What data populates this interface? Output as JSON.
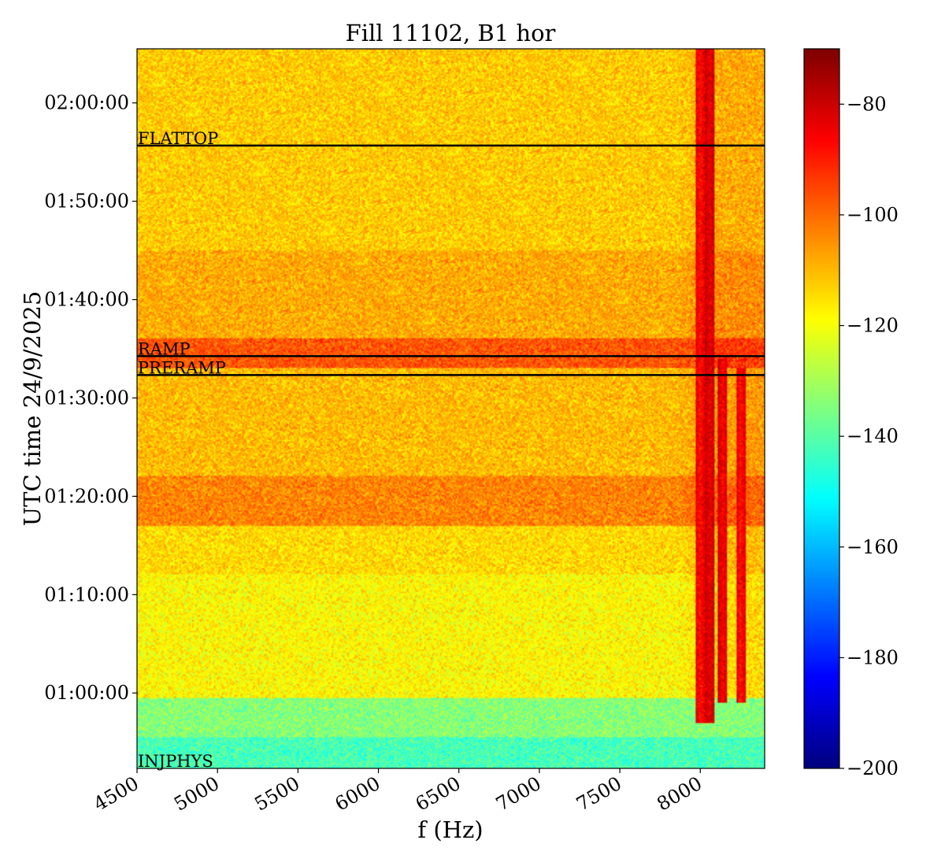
{
  "chart_data": {
    "type": "heatmap",
    "title": "Fill 11102, B1 hor",
    "xlabel": "f (Hz)",
    "ylabel": "UTC time 24/9/2025",
    "xlim": [
      4500,
      8400
    ],
    "ylim": [
      "00:52:20",
      "02:05:30"
    ],
    "x_ticks": [
      4500,
      5000,
      5500,
      6000,
      6500,
      7000,
      7500,
      8000
    ],
    "y_ticks": [
      "01:00:00",
      "01:10:00",
      "01:20:00",
      "01:30:00",
      "01:40:00",
      "01:50:00",
      "02:00:00"
    ],
    "colorscale": "jet",
    "colorbar": {
      "range": [
        -200,
        -70
      ],
      "ticks": [
        -80,
        -100,
        -120,
        -140,
        -160,
        -180,
        -200
      ],
      "tick_labels": [
        "−80",
        "−100",
        "−120",
        "−140",
        "−160",
        "−180",
        "−200"
      ]
    },
    "events": [
      {
        "label": "FLATTOP",
        "time": "01:55:40"
      },
      {
        "label": "RAMP",
        "time": "01:34:15"
      },
      {
        "label": "PRERAMP",
        "time": "01:32:20"
      },
      {
        "label": "INJPHYS",
        "time": "00:52:20"
      }
    ],
    "background_levels_db": [
      {
        "from": "00:52:20",
        "to": "00:55:30",
        "level": -142
      },
      {
        "from": "00:55:30",
        "to": "00:59:30",
        "level": -134
      },
      {
        "from": "00:59:30",
        "to": "01:12:00",
        "level": -118
      },
      {
        "from": "01:12:00",
        "to": "01:17:00",
        "level": -114
      },
      {
        "from": "01:17:00",
        "to": "01:22:00",
        "level": -103
      },
      {
        "from": "01:22:00",
        "to": "01:33:00",
        "level": -110
      },
      {
        "from": "01:33:00",
        "to": "01:36:00",
        "level": -97
      },
      {
        "from": "01:36:00",
        "to": "01:45:00",
        "level": -108
      },
      {
        "from": "01:45:00",
        "to": "02:05:30",
        "level": -112
      }
    ],
    "spectral_lines": [
      {
        "f_hz": 8000,
        "from": "00:57:00",
        "to": "02:05:30",
        "level": -88
      },
      {
        "f_hz": 8060,
        "from": "00:57:00",
        "to": "02:05:30",
        "level": -84
      },
      {
        "f_hz": 8140,
        "from": "00:59:00",
        "to": "01:34:00",
        "level": -86
      },
      {
        "f_hz": 8250,
        "from": "00:59:00",
        "to": "01:33:00",
        "level": -88
      }
    ]
  }
}
